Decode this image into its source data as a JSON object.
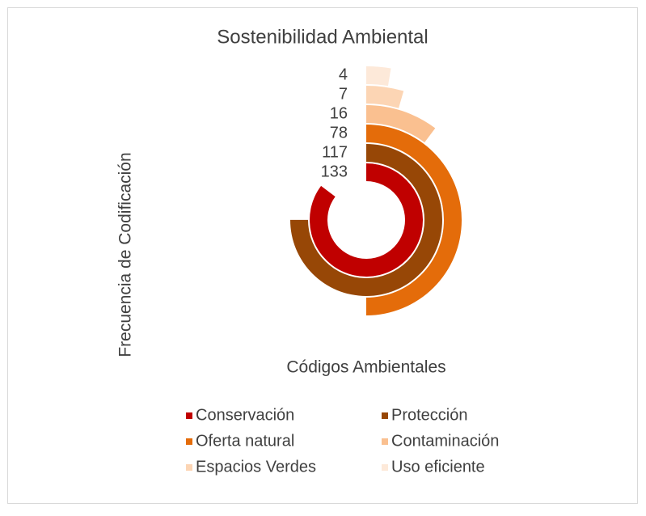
{
  "chart_data": {
    "type": "radial_bar",
    "title": "Sostenibilidad Ambiental",
    "x_label": "Códigos Ambientales",
    "y_label": "Frecuencia de Codificación",
    "categories": [
      "Conservación",
      "Protección",
      "Oferta natural",
      "Contaminación",
      "Espacios Verdes",
      "Uso eficiente"
    ],
    "values": [
      133,
      117,
      78,
      16,
      7,
      4
    ],
    "colors": [
      "#c00000",
      "#974706",
      "#e46c0a",
      "#fac090",
      "#fcd5b4",
      "#fde9d9"
    ],
    "legend": "bottom"
  }
}
